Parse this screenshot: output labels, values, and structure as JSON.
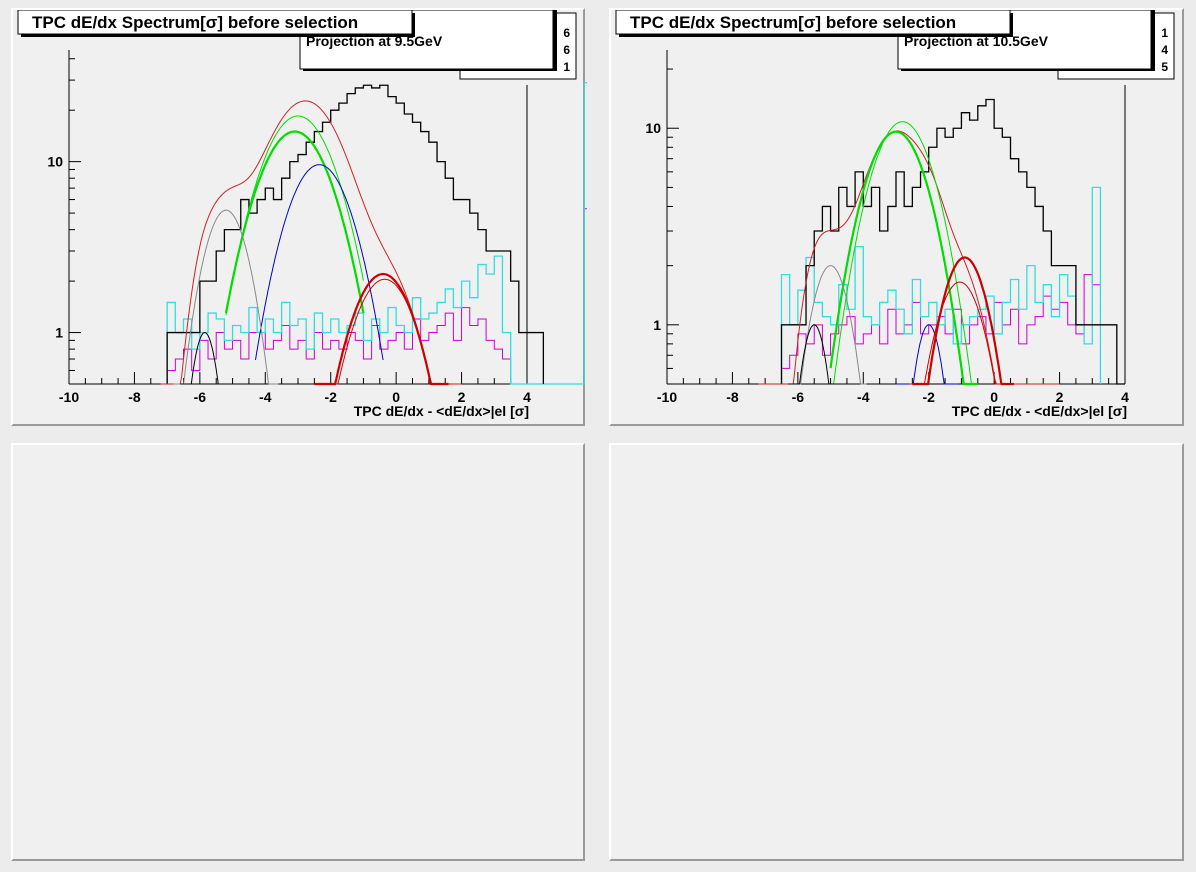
{
  "pads": [
    {
      "title": "TPC dE/dx Spectrum[σ] before selection",
      "stats_label": "Projection at 9.5GeV",
      "stats_digits": [
        "6",
        "6",
        "1"
      ],
      "xlabel": "TPC dE/dx - <dE/dx>|el [σ]"
    },
    {
      "title": "TPC dE/dx Spectrum[σ] before selection",
      "stats_label": "Projection at 10.5GeV",
      "stats_digits": [
        "1",
        "4",
        "5"
      ],
      "xlabel": "TPC dE/dx - <dE/dx>|el [σ]"
    },
    {
      "empty": true
    },
    {
      "empty": true
    }
  ],
  "colors": {
    "data": "#000000",
    "total_fit": "#cc2222",
    "electron_fit": "#cc0000",
    "pion_fit": "#00dd00",
    "kaon_fit": "#0000cc",
    "proton_fit": "#888888",
    "deuteron_fit": "#000000",
    "cyan_hist": "#33dddd",
    "magenta_hist": "#cc00cc"
  },
  "chart_data": [
    {
      "type": "line",
      "title": "TPC dE/dx Spectrum[σ] before selection",
      "xlabel": "TPC dE/dx - <dE/dx>|el [σ]",
      "ylabel": "",
      "xlim": [
        -10,
        4
      ],
      "ylim": [
        0.5,
        45
      ],
      "yscale": "log",
      "xticks": [
        -10,
        -8,
        -6,
        -4,
        -2,
        0,
        2,
        4
      ],
      "yticks": [
        1,
        10
      ],
      "annotation": "Projection at 9.5GeV",
      "bin_width": 0.25,
      "hist_data": {
        "x0": -7.0,
        "values": [
          1,
          1,
          1,
          1,
          2,
          2,
          3,
          4,
          4,
          6,
          5,
          6,
          7,
          6,
          8,
          10,
          11,
          13,
          15,
          17,
          20,
          22,
          25,
          27,
          28,
          27,
          28,
          24,
          22,
          19,
          17,
          15,
          13,
          10,
          8,
          6,
          6,
          5,
          4,
          3,
          3,
          3,
          2,
          1,
          1,
          1
        ]
      },
      "hist_cyan": {
        "x0": -7.0,
        "values": [
          1.5,
          1,
          1.2,
          0.8,
          1,
          1.3,
          1.2,
          0.9,
          1.1,
          1,
          1.4,
          1,
          1.2,
          1,
          1.5,
          1.1,
          1.2,
          0.8,
          1.3,
          1,
          1.2,
          1,
          1.1,
          1.3,
          0.9,
          1.2,
          1,
          1.4,
          1.1,
          1,
          1.6,
          1.2,
          1.3,
          1.5,
          1.8,
          1.4,
          2,
          1.6,
          2.5,
          2.2,
          2.8,
          1,
          0,
          0,
          0,
          0,
          0,
          0,
          0,
          0,
          0,
          29
        ]
      },
      "hist_magenta": {
        "x0": -7.0,
        "values": [
          0.6,
          0.7,
          0.8,
          0.6,
          0.9,
          0.7,
          1,
          0.8,
          0.9,
          0.7,
          1,
          1,
          0.8,
          0.9,
          1.1,
          0.8,
          0.9,
          0.7,
          1,
          0.8,
          0.9,
          0.8,
          1,
          0.9,
          0.7,
          1.1,
          0.8,
          0.9,
          1,
          0.8,
          1.2,
          0.9,
          1,
          1.1,
          1.3,
          0.9,
          1.4,
          1.1,
          1.2,
          0.9,
          0.8,
          0.7,
          0,
          0,
          0,
          0,
          0,
          0,
          0,
          0,
          0,
          5.3
        ]
      },
      "fits": [
        {
          "color": "total_fit",
          "width": 1,
          "gaussians": [
            [
              1,
              -5.85,
              0.35
            ],
            [
              5.2,
              -5.2,
              0.6
            ],
            [
              9.6,
              -2.35,
              0.85
            ],
            [
              15,
              -3.1,
              0.95
            ],
            [
              2.2,
              -0.4,
              0.85
            ]
          ]
        },
        {
          "color": "pion_fit",
          "width": 2.2,
          "amp": 15,
          "mean": -3.1,
          "sigma": 0.95,
          "xr": [
            -5.2,
            -1.0
          ]
        },
        {
          "color": "pion_fit",
          "width": 1,
          "amp": 18.5,
          "mean": -3.0,
          "sigma": 0.95,
          "xr": [
            -5.2,
            -1.0
          ]
        },
        {
          "color": "kaon_fit",
          "width": 1,
          "amp": 9.6,
          "mean": -2.35,
          "sigma": 0.85,
          "xr": [
            -4.3,
            -0.4
          ]
        },
        {
          "color": "proton_fit",
          "width": 1,
          "amp": 5.2,
          "mean": -5.2,
          "sigma": 0.6,
          "xr": [
            -6.8,
            -3.6
          ]
        },
        {
          "color": "deuteron_fit",
          "width": 1,
          "amp": 1,
          "mean": -5.85,
          "sigma": 0.35,
          "xr": [
            -6.6,
            -5.1
          ]
        },
        {
          "color": "electron_fit",
          "width": 2.2,
          "amp": 2.2,
          "mean": -0.4,
          "sigma": 0.85,
          "xr": [
            -2.5,
            1.6
          ]
        },
        {
          "color": "electron_fit",
          "width": 1,
          "amp": 2.05,
          "mean": -0.35,
          "sigma": 0.85,
          "xr": [
            -2.4,
            1.7
          ]
        }
      ]
    },
    {
      "type": "line",
      "title": "TPC dE/dx Spectrum[σ] before selection",
      "xlabel": "TPC dE/dx - <dE/dx>|el [σ]",
      "ylabel": "",
      "xlim": [
        -10,
        4
      ],
      "ylim": [
        0.5,
        25
      ],
      "yscale": "log",
      "xticks": [
        -10,
        -8,
        -6,
        -4,
        -2,
        0,
        2,
        4
      ],
      "yticks": [
        1,
        10
      ],
      "annotation": "Projection at 10.5GeV",
      "bin_width": 0.25,
      "hist_data": {
        "x0": -6.5,
        "values": [
          1,
          1,
          1,
          2,
          3,
          4,
          3,
          5,
          4,
          6,
          4,
          5,
          3,
          4,
          6,
          4,
          5,
          6,
          8,
          10,
          9,
          10,
          12,
          11,
          13,
          14,
          10,
          9,
          7,
          6,
          5,
          4,
          3,
          2,
          2,
          2,
          1,
          1,
          1,
          1,
          1,
          0.5
        ]
      },
      "hist_cyan": {
        "x0": -6.5,
        "values": [
          1.8,
          1,
          1.5,
          2.2,
          1.3,
          1.1,
          1,
          1.6,
          1.2,
          2.5,
          1.1,
          1,
          1.3,
          1.5,
          1.2,
          0.9,
          1.7,
          1.1,
          1.3,
          1,
          1.2,
          0.8,
          1,
          1.1,
          1.2,
          1.4,
          0.9,
          1.3,
          1.7,
          1.2,
          2,
          1.3,
          1.6,
          1.1,
          1.8,
          1.4,
          1,
          0.8,
          5
        ]
      },
      "hist_magenta": {
        "x0": -6.5,
        "values": [
          0.6,
          0.7,
          0.9,
          0.8,
          1,
          0.7,
          0.9,
          1,
          1.1,
          0.8,
          0.9,
          1,
          0.8,
          1.2,
          0.9,
          1,
          1.3,
          0.9,
          1,
          1.1,
          0.9,
          1.2,
          0.8,
          1,
          1.1,
          0.9,
          1.3,
          1,
          1.2,
          0.8,
          1,
          1.1,
          1.4,
          1.2,
          1.3,
          1,
          0.9,
          1.8,
          1.6
        ]
      },
      "fits": [
        {
          "color": "total_fit",
          "width": 1,
          "gaussians": [
            [
              1,
              -5.5,
              0.38
            ],
            [
              2,
              -5.0,
              0.55
            ],
            [
              9.6,
              -3.0,
              0.85
            ],
            [
              1,
              -2.0,
              0.4
            ],
            [
              1.65,
              -1.05,
              0.7
            ]
          ]
        },
        {
          "color": "pion_fit",
          "width": 2.2,
          "amp": 9.6,
          "mean": -3.0,
          "sigma": 0.85,
          "xr": [
            -5.0,
            -0.5
          ]
        },
        {
          "color": "pion_fit",
          "width": 1,
          "amp": 10.8,
          "mean": -2.8,
          "sigma": 0.85,
          "xr": [
            -5.0,
            -0.5
          ]
        },
        {
          "color": "kaon_fit",
          "width": 1,
          "amp": 1,
          "mean": -2.0,
          "sigma": 0.4,
          "xr": [
            -3.0,
            -1.1
          ]
        },
        {
          "color": "proton_fit",
          "width": 1,
          "amp": 2,
          "mean": -5.0,
          "sigma": 0.55,
          "xr": [
            -6.3,
            -3.9
          ]
        },
        {
          "color": "deuteron_fit",
          "width": 1,
          "amp": 1,
          "mean": -5.5,
          "sigma": 0.38,
          "xr": [
            -6.3,
            -4.7
          ]
        },
        {
          "color": "electron_fit",
          "width": 2.2,
          "amp": 2.2,
          "mean": -0.9,
          "sigma": 0.65,
          "xr": [
            -2.5,
            0.6
          ]
        },
        {
          "color": "electron_fit",
          "width": 1,
          "amp": 1.65,
          "mean": -1.05,
          "sigma": 0.7,
          "xr": [
            -2.6,
            0.6
          ]
        }
      ]
    }
  ]
}
